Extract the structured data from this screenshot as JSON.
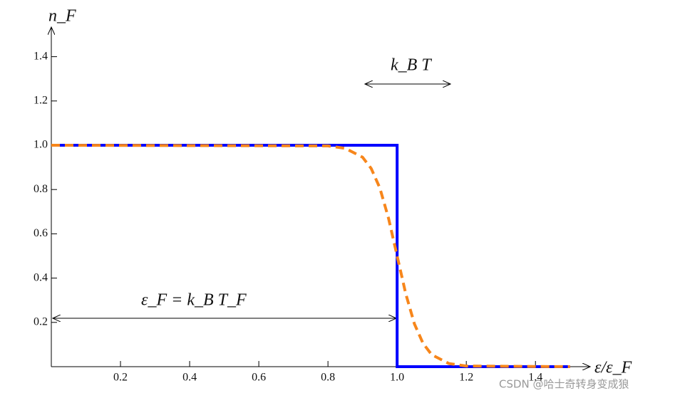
{
  "chart_data": {
    "type": "line",
    "ylabel": "n_F",
    "xlabel": "ε/ε_F",
    "annotations": [
      "k_B T",
      "ε_F = k_B T_F"
    ],
    "watermark": "CSDN @哈士奇转身变成狼",
    "xlim": [
      0,
      1.55
    ],
    "ylim": [
      0,
      1.5
    ],
    "xticks": [
      0.2,
      0.4,
      0.6,
      0.8,
      {
        "value": 1,
        "label": "1.0"
      },
      1.2,
      1.4
    ],
    "yticks": [
      0.2,
      0.4,
      0.6,
      0.8,
      {
        "value": 1,
        "label": "1.0"
      },
      1.2,
      1.4
    ],
    "series": [
      {
        "color": "#0000ff",
        "dashed": false,
        "x": [
          0,
          1,
          1,
          1.5
        ],
        "values": [
          1,
          1,
          0,
          0
        ]
      },
      {
        "color": "#f7861b",
        "dashed": true,
        "x": [
          0,
          0.8,
          0.85,
          0.9,
          0.925,
          0.95,
          0.975,
          1,
          1.025,
          1.05,
          1.075,
          1.1,
          1.15,
          1.2,
          1.5
        ],
        "values": [
          1,
          0.997,
          0.986,
          0.946,
          0.895,
          0.807,
          0.671,
          0.5,
          0.329,
          0.193,
          0.105,
          0.054,
          0.014,
          0.003,
          0
        ]
      }
    ]
  }
}
